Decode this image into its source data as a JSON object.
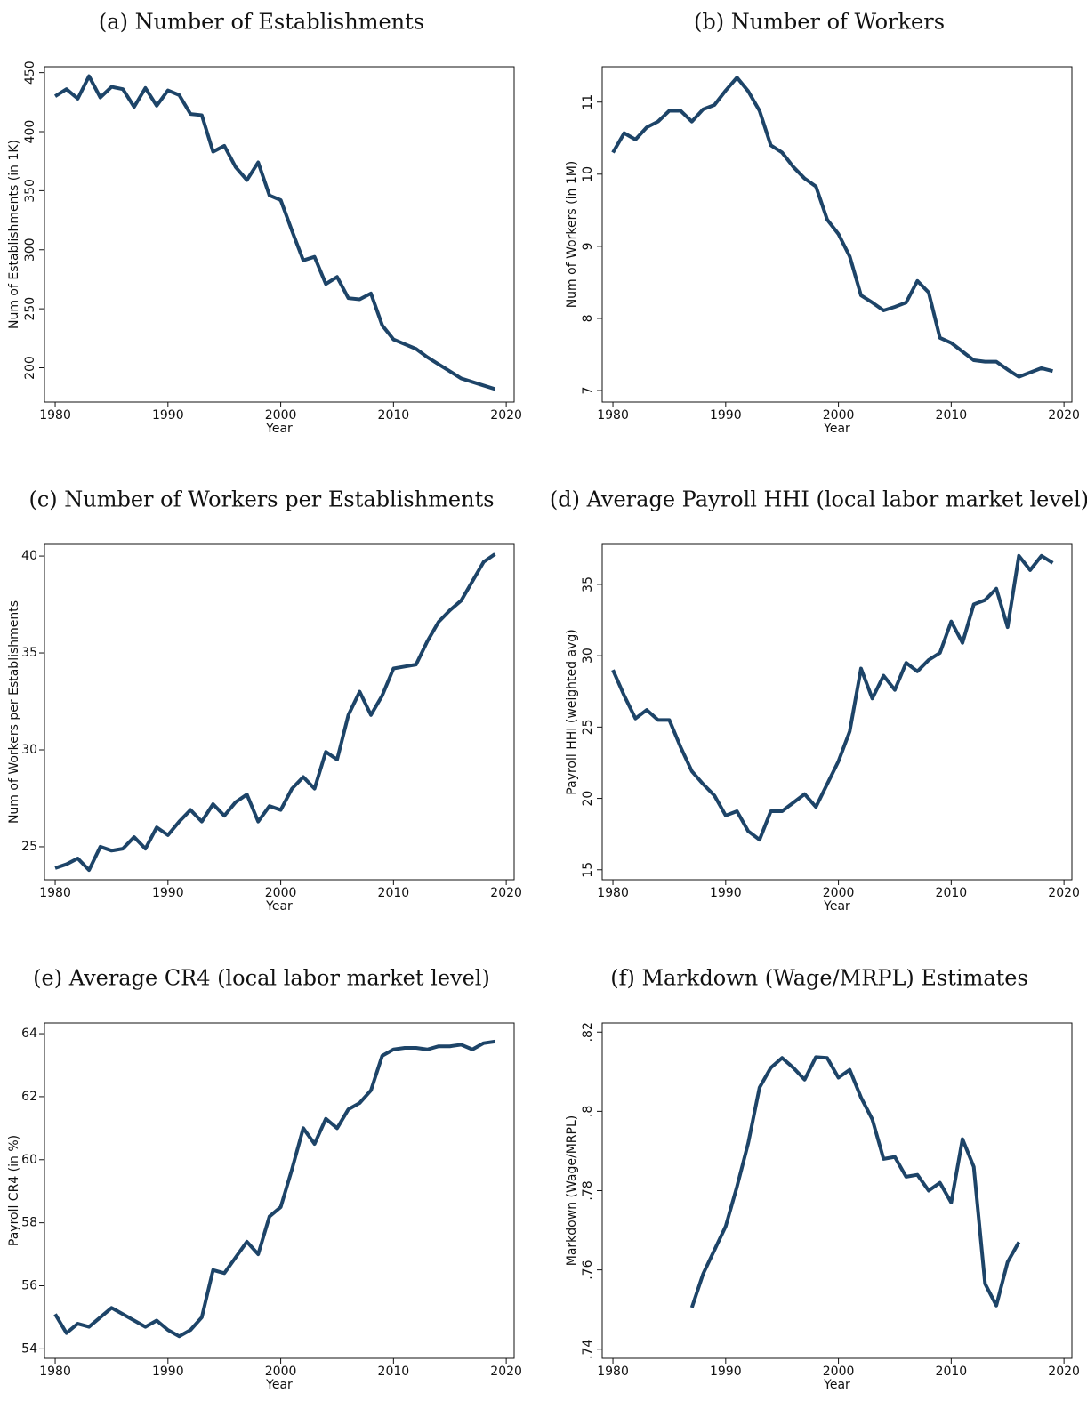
{
  "chart_data": [
    {
      "type": "line",
      "title": "(a) Number of Establishments",
      "xlabel": "Year",
      "ylabel": "Num of Establishments (in 1K)",
      "color": "#1d4468",
      "x": [
        1980,
        1981,
        1982,
        1983,
        1984,
        1985,
        1986,
        1987,
        1988,
        1989,
        1990,
        1991,
        1992,
        1993,
        1994,
        1995,
        1996,
        1997,
        1998,
        1999,
        2000,
        2001,
        2002,
        2003,
        2004,
        2005,
        2006,
        2007,
        2008,
        2009,
        2010,
        2011,
        2012,
        2013,
        2014,
        2015,
        2016,
        2017,
        2018,
        2019
      ],
      "values": [
        430,
        436,
        428,
        447,
        429,
        438,
        436,
        421,
        437,
        422,
        435,
        431,
        415,
        414,
        383,
        388,
        370,
        359,
        374,
        346,
        342,
        316,
        291,
        294,
        271,
        277,
        259,
        258,
        263,
        236,
        224,
        220,
        216,
        209,
        203,
        197,
        191,
        188,
        185,
        182
      ],
      "xlim": [
        1979.05,
        2020.7
      ],
      "xticks": [
        1980,
        1990,
        2000,
        2010,
        2020
      ],
      "ylim": [
        171,
        455
      ],
      "yticks": [
        200,
        250,
        300,
        350,
        400,
        450
      ],
      "ytick_labels_rotated": true
    },
    {
      "type": "line",
      "title": "(b) Number of Workers",
      "xlabel": "Year",
      "ylabel": "Num of Workers (in 1M)",
      "color": "#1d4468",
      "x": [
        1980,
        1981,
        1982,
        1983,
        1984,
        1985,
        1986,
        1987,
        1988,
        1989,
        1990,
        1991,
        1992,
        1993,
        1994,
        1995,
        1996,
        1997,
        1998,
        1999,
        2000,
        2001,
        2002,
        2003,
        2004,
        2005,
        2006,
        2007,
        2008,
        2009,
        2010,
        2011,
        2012,
        2013,
        2014,
        2015,
        2016,
        2017,
        2018,
        2019
      ],
      "values": [
        10.3,
        10.57,
        10.48,
        10.65,
        10.73,
        10.88,
        10.88,
        10.73,
        10.9,
        10.96,
        11.16,
        11.34,
        11.15,
        10.88,
        10.4,
        10.3,
        10.1,
        9.94,
        9.83,
        9.37,
        9.17,
        8.86,
        8.32,
        8.22,
        8.11,
        8.16,
        8.22,
        8.52,
        8.36,
        7.73,
        7.66,
        7.54,
        7.42,
        7.4,
        7.4,
        7.29,
        7.19,
        7.25,
        7.31,
        7.27
      ],
      "xlim": [
        1979.05,
        2020.7
      ],
      "xticks": [
        1980,
        1990,
        2000,
        2010,
        2020
      ],
      "ylim": [
        6.84,
        11.49
      ],
      "yticks": [
        7,
        8,
        9,
        10,
        11
      ],
      "ytick_labels_rotated": true
    },
    {
      "type": "line",
      "title": "(c) Number of Workers per Establishments",
      "xlabel": "Year",
      "ylabel": "Num of Workers per Establishments",
      "color": "#1d4468",
      "x": [
        1980,
        1981,
        1982,
        1983,
        1984,
        1985,
        1986,
        1987,
        1988,
        1989,
        1990,
        1991,
        1992,
        1993,
        1994,
        1995,
        1996,
        1997,
        1998,
        1999,
        2000,
        2001,
        2002,
        2003,
        2004,
        2005,
        2006,
        2007,
        2008,
        2009,
        2010,
        2011,
        2012,
        2013,
        2014,
        2015,
        2016,
        2017,
        2018,
        2019
      ],
      "values": [
        23.9,
        24.1,
        24.4,
        23.8,
        25.0,
        24.8,
        24.9,
        25.5,
        24.9,
        26.0,
        25.6,
        26.3,
        26.9,
        26.3,
        27.2,
        26.6,
        27.3,
        27.7,
        26.3,
        27.1,
        26.9,
        28.0,
        28.6,
        28.0,
        29.9,
        29.5,
        31.8,
        33.0,
        31.8,
        32.8,
        34.2,
        34.3,
        34.4,
        35.6,
        36.6,
        37.2,
        37.7,
        38.7,
        39.7,
        40.1
      ],
      "xlim": [
        1979.05,
        2020.7
      ],
      "xticks": [
        1980,
        1990,
        2000,
        2010,
        2020
      ],
      "ylim": [
        23.3,
        40.6
      ],
      "yticks": [
        25,
        30,
        35,
        40
      ],
      "ytick_labels_rotated": false
    },
    {
      "type": "line",
      "title": "(d) Average Payroll HHI (local labor market level)",
      "xlabel": "Year",
      "ylabel": "Payroll HHI (weighted avg)",
      "color": "#1d4468",
      "x": [
        1980,
        1981,
        1982,
        1983,
        1984,
        1985,
        1986,
        1987,
        1988,
        1989,
        1990,
        1991,
        1992,
        1993,
        1994,
        1995,
        1996,
        1997,
        1998,
        1999,
        2000,
        2001,
        2002,
        2003,
        2004,
        2005,
        2006,
        2007,
        2008,
        2009,
        2010,
        2011,
        2012,
        2013,
        2014,
        2015,
        2016,
        2017,
        2018,
        2019
      ],
      "values": [
        29.0,
        27.2,
        25.6,
        26.2,
        25.5,
        25.5,
        23.6,
        21.9,
        21.0,
        20.2,
        18.8,
        19.1,
        17.7,
        17.1,
        19.1,
        19.1,
        19.7,
        20.3,
        19.4,
        21.0,
        22.6,
        24.7,
        29.1,
        27.0,
        28.6,
        27.6,
        29.5,
        28.9,
        29.7,
        30.2,
        32.4,
        30.9,
        33.6,
        33.9,
        34.7,
        32.0,
        37.0,
        36.0,
        37.0,
        36.5
      ],
      "xlim": [
        1979.05,
        2020.7
      ],
      "xticks": [
        1980,
        1990,
        2000,
        2010,
        2020
      ],
      "ylim": [
        14.3,
        37.8
      ],
      "yticks": [
        15,
        20,
        25,
        30,
        35
      ],
      "ytick_labels_rotated": true
    },
    {
      "type": "line",
      "title": "(e) Average CR4 (local labor market level)",
      "xlabel": "Year",
      "ylabel": "Payroll CR4 (in %)",
      "color": "#1d4468",
      "x": [
        1980,
        1981,
        1982,
        1983,
        1984,
        1985,
        1986,
        1987,
        1988,
        1989,
        1990,
        1991,
        1992,
        1993,
        1994,
        1995,
        1996,
        1997,
        1998,
        1999,
        2000,
        2001,
        2002,
        2003,
        2004,
        2005,
        2006,
        2007,
        2008,
        2009,
        2010,
        2011,
        2012,
        2013,
        2014,
        2015,
        2016,
        2017,
        2018,
        2019
      ],
      "values": [
        55.1,
        54.5,
        54.8,
        54.7,
        55.0,
        55.3,
        55.1,
        54.9,
        54.7,
        54.9,
        54.6,
        54.4,
        54.6,
        55.0,
        56.5,
        56.4,
        56.9,
        57.4,
        57.0,
        58.2,
        58.5,
        59.7,
        61.0,
        60.5,
        61.3,
        61.0,
        61.6,
        61.8,
        62.2,
        63.3,
        63.5,
        63.55,
        63.55,
        63.5,
        63.6,
        63.6,
        63.65,
        63.5,
        63.7,
        63.75
      ],
      "xlim": [
        1979.05,
        2020.7
      ],
      "xticks": [
        1980,
        1990,
        2000,
        2010,
        2020
      ],
      "ylim": [
        53.7,
        64.34
      ],
      "yticks": [
        54,
        56,
        58,
        60,
        62,
        64
      ],
      "ytick_labels_rotated": false
    },
    {
      "type": "line",
      "title": "(f) Markdown (Wage/MRPL) Estimates",
      "xlabel": "Year",
      "ylabel": "Markdown (Wage/MRPL)",
      "color": "#1d4468",
      "x": [
        1987,
        1988,
        1989,
        1990,
        1991,
        1992,
        1993,
        1994,
        1995,
        1996,
        1997,
        1998,
        1999,
        2000,
        2001,
        2002,
        2003,
        2004,
        2005,
        2006,
        2007,
        2008,
        2009,
        2010,
        2011,
        2012,
        2013,
        2014,
        2015,
        2016
      ],
      "values": [
        0.7505,
        0.759,
        0.765,
        0.771,
        0.781,
        0.792,
        0.806,
        0.811,
        0.8135,
        0.811,
        0.808,
        0.8137,
        0.8135,
        0.8085,
        0.8105,
        0.8035,
        0.798,
        0.788,
        0.7885,
        0.7835,
        0.784,
        0.78,
        0.782,
        0.777,
        0.793,
        0.786,
        0.7565,
        0.751,
        0.762,
        0.767
      ],
      "xlim": [
        1979.05,
        2020.7
      ],
      "xticks": [
        1980,
        1990,
        2000,
        2010,
        2020
      ],
      "ylim": [
        0.7377,
        0.8223
      ],
      "yticks": [
        {
          "value": 0.74,
          "label": ".74"
        },
        {
          "value": 0.76,
          "label": ".76"
        },
        {
          "value": 0.78,
          "label": ".78"
        },
        {
          "value": 0.8,
          "label": ".8"
        },
        {
          "value": 0.82,
          "label": ".82"
        }
      ],
      "ytick_labels_rotated": true
    }
  ]
}
